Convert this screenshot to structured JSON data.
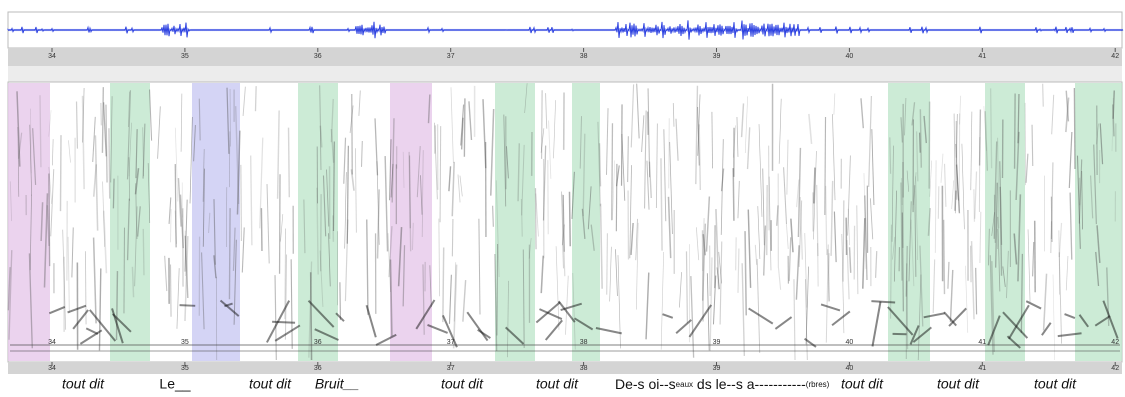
{
  "waveform": {
    "ticks": [
      "34",
      "35",
      "36",
      "37",
      "38",
      "39",
      "40",
      "41",
      "42"
    ]
  },
  "spectrogram": {
    "ticks": [
      "34",
      "35",
      "36",
      "37",
      "38",
      "39",
      "40",
      "41",
      "42"
    ]
  },
  "transcription": [
    {
      "text": "tout dit"
    },
    {
      "text": "Le__"
    },
    {
      "text": "tout dit"
    },
    {
      "text": "Bruit__"
    },
    {
      "text": "tout dit"
    },
    {
      "text": "tout dit"
    },
    {
      "parts": [
        "De-s oi--s",
        "eaux",
        " ds le--s a-----------",
        "(rbres)"
      ]
    },
    {
      "text": "tout dit"
    },
    {
      "text": "tout dit"
    },
    {
      "text": "tout dit"
    }
  ]
}
